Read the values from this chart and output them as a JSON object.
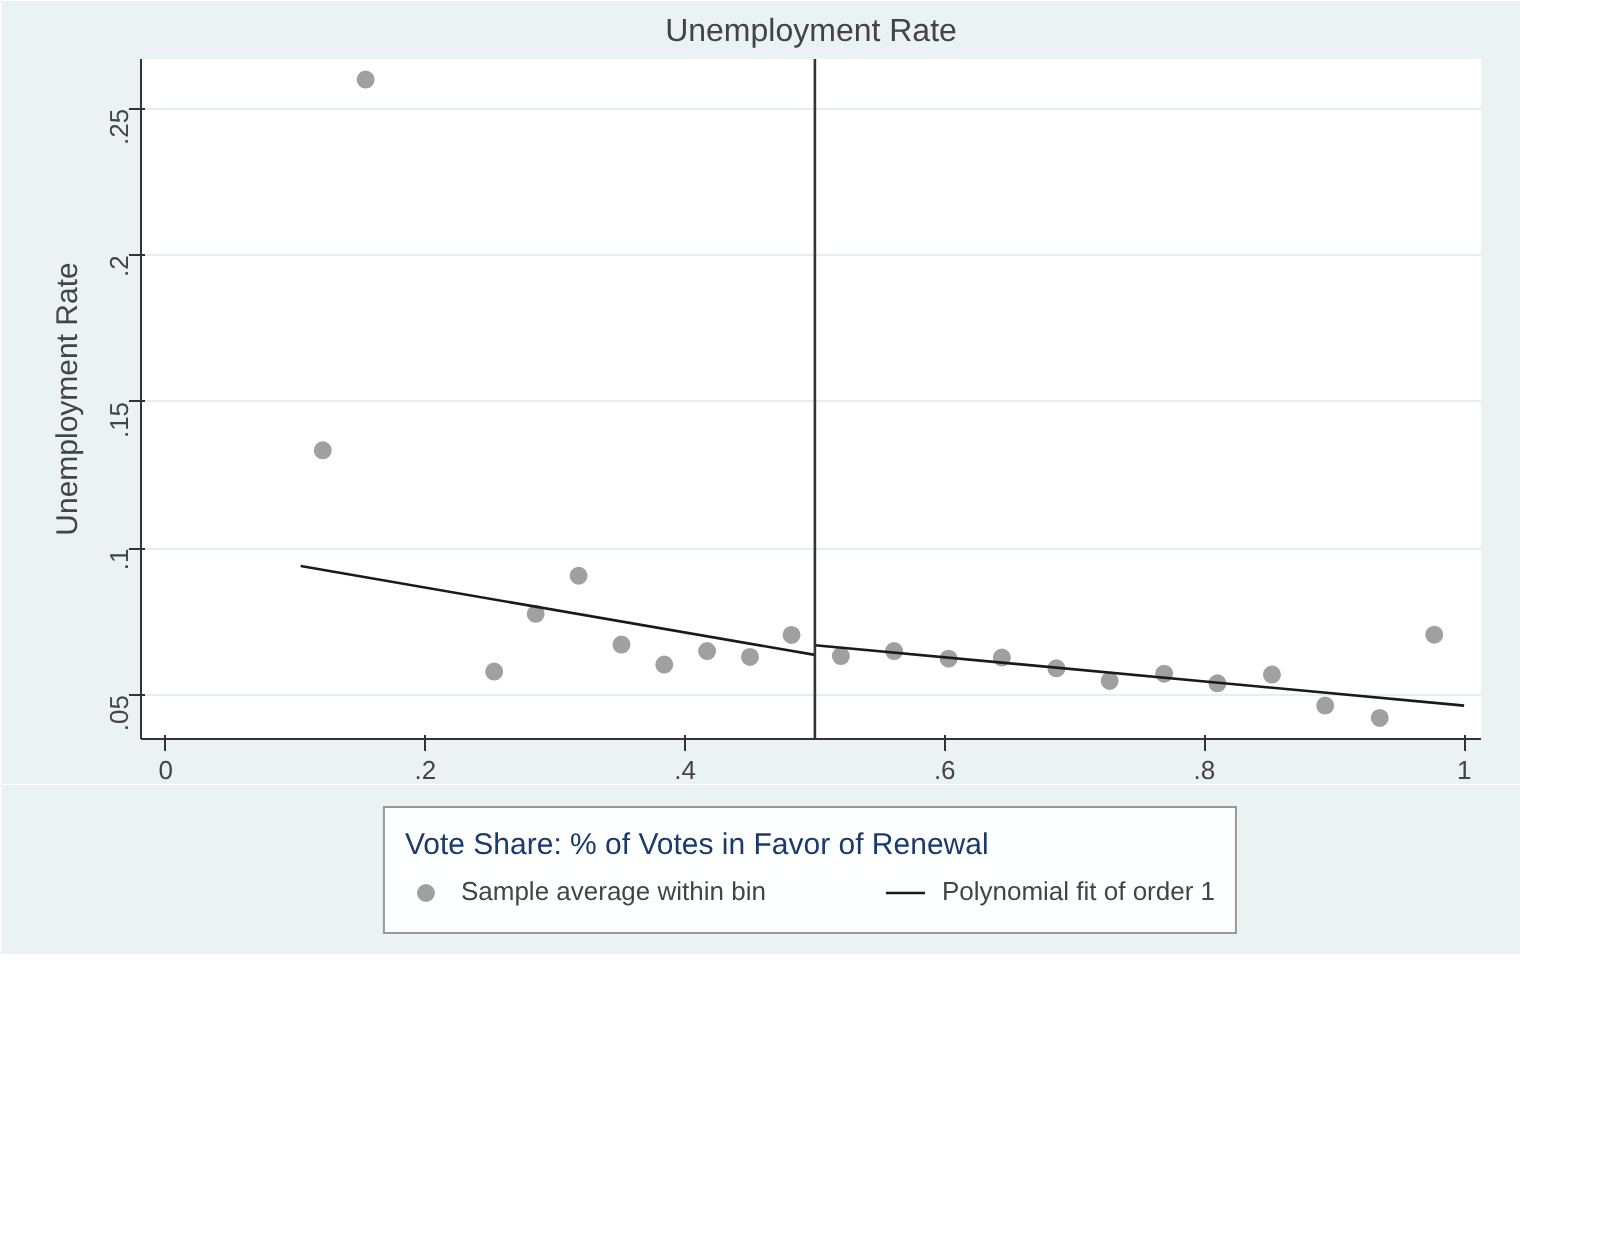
{
  "chart_data": {
    "type": "scatter",
    "title": "Unemployment Rate",
    "xlabel": "Vote Share: % of Votes in Favor of Renewal",
    "ylabel": "Unemployment Rate",
    "xlim": [
      -0.019,
      1.013
    ],
    "ylim": [
      0.035,
      0.267
    ],
    "xticks": [
      0,
      {
        "value": 0.2,
        "label": ".2"
      },
      {
        "value": 0.4,
        "label": ".4"
      },
      {
        "value": 0.6,
        "label": ".6"
      },
      {
        "value": 0.8,
        "label": ".8"
      },
      1
    ],
    "yticks": [
      {
        "value": 0.05,
        "label": ".05"
      },
      {
        "value": 0.1,
        "label": ".1"
      },
      {
        "value": 0.15,
        "label": ".15"
      },
      {
        "value": 0.2,
        "label": ".2"
      },
      {
        "value": 0.25,
        "label": ".25"
      }
    ],
    "grid": "y",
    "legend": "bottom",
    "ref_lines": [
      {
        "axis": "x",
        "value": 0.5,
        "color": "#333333"
      }
    ],
    "series": [
      {
        "name": "Sample average within bin",
        "color": "#a0a0a0",
        "x": [
          0.121,
          0.154,
          0.253,
          0.285,
          0.318,
          0.351,
          0.384,
          0.417,
          0.45,
          0.482,
          0.52,
          0.561,
          0.603,
          0.644,
          0.686,
          0.727,
          0.769,
          0.81,
          0.852,
          0.893,
          0.935,
          0.977
        ],
        "values": [
          0.1335,
          0.26,
          0.058,
          0.0777,
          0.0907,
          0.0672,
          0.0604,
          0.065,
          0.063,
          0.0705,
          0.0633,
          0.065,
          0.0624,
          0.0628,
          0.0591,
          0.0548,
          0.0573,
          0.054,
          0.057,
          0.0464,
          0.0422,
          0.0706
        ]
      },
      {
        "name": "Polynomial fit of order 1",
        "type": "line",
        "color": "#1a1a1a",
        "x": [
          0.104,
          0.5
        ],
        "values": [
          0.094,
          0.0637
        ]
      },
      {
        "type": "line",
        "color": "#1a1a1a",
        "x": [
          0.5,
          1
        ],
        "values": [
          0.067,
          0.0464
        ]
      }
    ]
  }
}
